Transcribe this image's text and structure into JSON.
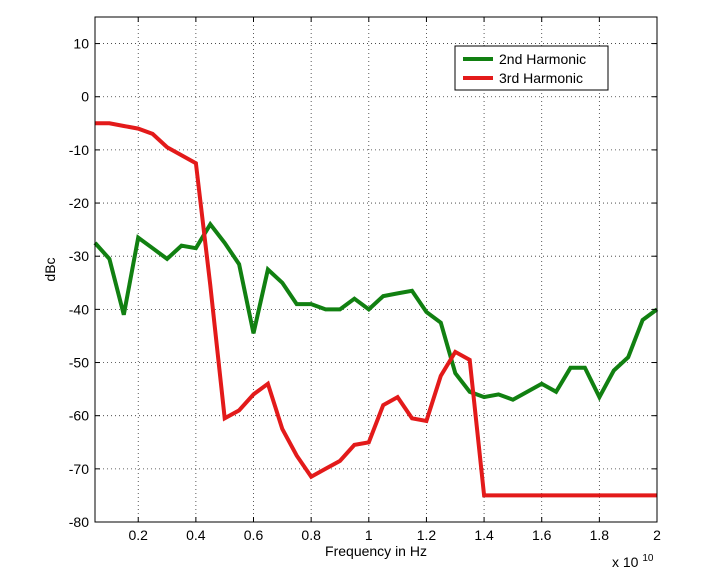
{
  "chart_data": {
    "type": "line",
    "title": "",
    "xlabel": "Frequency in Hz",
    "ylabel": "dBc",
    "x_exponent_label": "x 10",
    "x_exponent_power": "10",
    "xlim": [
      0.05,
      2.0
    ],
    "ylim": [
      -80,
      15
    ],
    "x_ticks": [
      0.2,
      0.4,
      0.6,
      0.8,
      1.0,
      1.2,
      1.4,
      1.6,
      1.8,
      2.0
    ],
    "x_tick_labels": [
      "0.2",
      "0.4",
      "0.6",
      "0.8",
      "1",
      "1.2",
      "1.4",
      "1.6",
      "1.8",
      "2"
    ],
    "y_ticks": [
      10,
      0,
      -10,
      -20,
      -30,
      -40,
      -50,
      -60,
      -70,
      -80
    ],
    "y_tick_labels": [
      "10",
      "0",
      "-10",
      "-20",
      "-30",
      "-40",
      "-50",
      "-60",
      "-70",
      "-80"
    ],
    "grid": true,
    "legend_position": "top-right",
    "series": [
      {
        "name": "2nd Harmonic",
        "color": "#118011",
        "x": [
          0.05,
          0.1,
          0.15,
          0.2,
          0.25,
          0.3,
          0.35,
          0.4,
          0.45,
          0.5,
          0.55,
          0.6,
          0.65,
          0.7,
          0.75,
          0.8,
          0.85,
          0.9,
          0.95,
          1.0,
          1.05,
          1.1,
          1.15,
          1.2,
          1.25,
          1.3,
          1.35,
          1.4,
          1.45,
          1.5,
          1.55,
          1.6,
          1.65,
          1.7,
          1.75,
          1.8,
          1.85,
          1.9,
          1.95,
          2.0
        ],
        "values": [
          -27.5,
          -30.5,
          -41,
          -26.5,
          -28.5,
          -30.5,
          -28,
          -28.5,
          -24,
          -27.5,
          -31.5,
          -44.5,
          -32.5,
          -35,
          -39,
          -39,
          -40,
          -40,
          -38,
          -40,
          -37.5,
          -37,
          -36.5,
          -40.5,
          -42.5,
          -52,
          -55.5,
          -56.5,
          -56,
          -57,
          -55.5,
          -54,
          -55.5,
          -51,
          -51,
          -56.5,
          -51.5,
          -49,
          -42,
          -40
        ]
      },
      {
        "name": "3rd Harmonic",
        "color": "#e31a1a",
        "x": [
          0.05,
          0.1,
          0.15,
          0.2,
          0.25,
          0.3,
          0.35,
          0.4,
          0.45,
          0.5,
          0.55,
          0.6,
          0.65,
          0.7,
          0.75,
          0.8,
          0.85,
          0.9,
          0.95,
          1.0,
          1.05,
          1.1,
          1.15,
          1.2,
          1.25,
          1.3,
          1.35,
          1.4,
          1.45,
          1.5,
          1.55,
          1.6,
          1.65,
          1.7,
          1.75,
          1.8,
          1.85,
          1.9,
          1.95,
          2.0
        ],
        "values": [
          -5,
          -5,
          -5.5,
          -6,
          -7,
          -9.5,
          -11,
          -12.5,
          -35.5,
          -60.5,
          -59,
          -56,
          -54,
          -62.5,
          -67.5,
          -71.5,
          -70,
          -68.5,
          -65.5,
          -65,
          -58,
          -56.5,
          -60.5,
          -61,
          -52.5,
          -48,
          -49.5,
          -75,
          -75,
          -75,
          -75,
          -75,
          -75,
          -75,
          -75,
          -75,
          -75,
          -75,
          -75,
          -75
        ]
      }
    ]
  }
}
